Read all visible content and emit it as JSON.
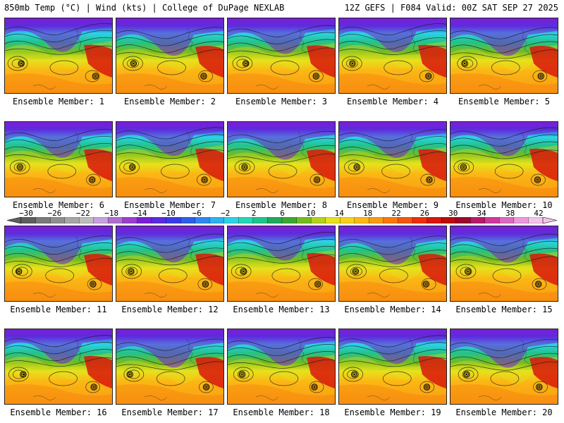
{
  "header": {
    "left": "850mb Temp (°C) | Wind (kts) | College of DuPage NEXLAB",
    "right": "12Z GEFS | F084 Valid: 00Z SAT SEP 27 2025"
  },
  "members": [
    "Ensemble Member: 1",
    "Ensemble Member: 2",
    "Ensemble Member: 3",
    "Ensemble Member: 4",
    "Ensemble Member: 5",
    "Ensemble Member: 6",
    "Ensemble Member: 7",
    "Ensemble Member: 8",
    "Ensemble Member: 9",
    "Ensemble Member: 10",
    "Ensemble Member: 11",
    "Ensemble Member: 12",
    "Ensemble Member: 13",
    "Ensemble Member: 14",
    "Ensemble Member: 15",
    "Ensemble Member: 16",
    "Ensemble Member: 17",
    "Ensemble Member: 18",
    "Ensemble Member: 19",
    "Ensemble Member: 20"
  ],
  "colorbar": {
    "labels": [
      "−30",
      "−26",
      "−22",
      "−18",
      "−14",
      "−10",
      "−6",
      "−2",
      "2",
      "6",
      "10",
      "14",
      "18",
      "22",
      "26",
      "30",
      "34",
      "38",
      "42"
    ],
    "colors": [
      "#5f5f5f",
      "#7a7a7a",
      "#8f8f8f",
      "#a6a6a6",
      "#bdbdbd",
      "#c7a0dc",
      "#b06ed0",
      "#9b3fd0",
      "#7a1fd6",
      "#5a2be0",
      "#3c3ce6",
      "#2e5fe8",
      "#2f86ee",
      "#2fb0f0",
      "#2dd2e6",
      "#27d6b4",
      "#22c38a",
      "#21a85c",
      "#3aa832",
      "#74bc1e",
      "#b4d21a",
      "#e6e21c",
      "#f7d11a",
      "#fbb714",
      "#f99a12",
      "#f7790f",
      "#f4560d",
      "#ee2f0c",
      "#d8160c",
      "#bb0c0c",
      "#9a0a2a",
      "#b61a6a",
      "#cc3a9a",
      "#de69c0",
      "#ec98dc",
      "#f4c2ec"
    ]
  },
  "icons": {
    "low_center": "storm-center-icon"
  }
}
